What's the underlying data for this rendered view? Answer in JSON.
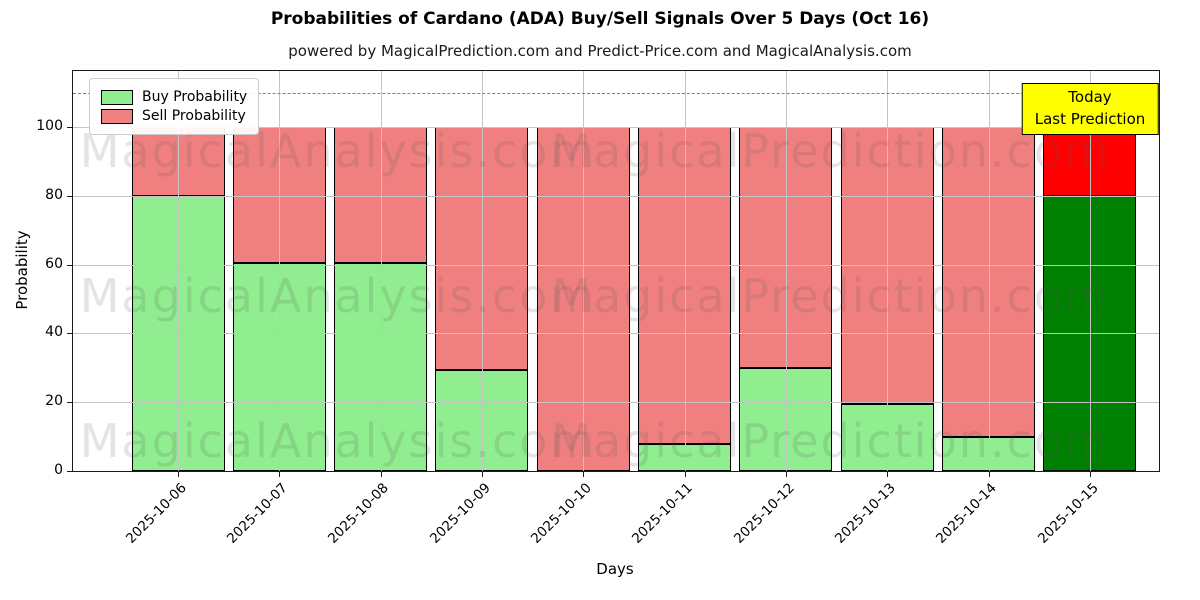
{
  "header": {
    "title": "Probabilities of Cardano (ADA) Buy/Sell Signals Over 5 Days (Oct 16)",
    "subtitle": "powered by MagicalPrediction.com and Predict-Price.com and MagicalAnalysis.com"
  },
  "chart_data": {
    "type": "bar",
    "stacked": true,
    "title": "Probabilities of Cardano (ADA) Buy/Sell Signals Over 5 Days (Oct 16)",
    "xlabel": "Days",
    "ylabel": "Probability",
    "categories": [
      "2025-10-06",
      "2025-10-07",
      "2025-10-08",
      "2025-10-09",
      "2025-10-10",
      "2025-10-11",
      "2025-10-12",
      "2025-10-13",
      "2025-10-14",
      "2025-10-15"
    ],
    "series": [
      {
        "name": "Buy Probability",
        "color": "#90EE90",
        "today_color": "#008000",
        "values": [
          80,
          60.5,
          60.5,
          29.5,
          0,
          8,
          30,
          19.5,
          10,
          80
        ]
      },
      {
        "name": "Sell Probability",
        "color": "#F08080",
        "today_color": "#FF0000",
        "values": [
          20,
          39.5,
          39.5,
          70.5,
          100,
          92,
          70,
          80.5,
          90,
          20
        ]
      }
    ],
    "today_index": 9,
    "yticks": [
      0,
      20,
      40,
      60,
      80,
      100
    ],
    "ylim": [
      0,
      116.3
    ],
    "grid": true,
    "dashed_line_y": 110,
    "legend_position": "upper left"
  },
  "legend": {
    "items": [
      {
        "label": "Buy Probability",
        "color": "#90EE90"
      },
      {
        "label": "Sell Probability",
        "color": "#F08080"
      }
    ]
  },
  "annotation": {
    "line1": "Today",
    "line2": "Last Prediction",
    "bg_color": "#FFFF00"
  },
  "watermarks": {
    "left": "MagicalAnalysis.com",
    "right": "MagicalPrediction.com"
  },
  "colors": {
    "grid": "#c4c4c4",
    "dashed_line": "#7f7f7f",
    "bar_edge": "#000000"
  }
}
